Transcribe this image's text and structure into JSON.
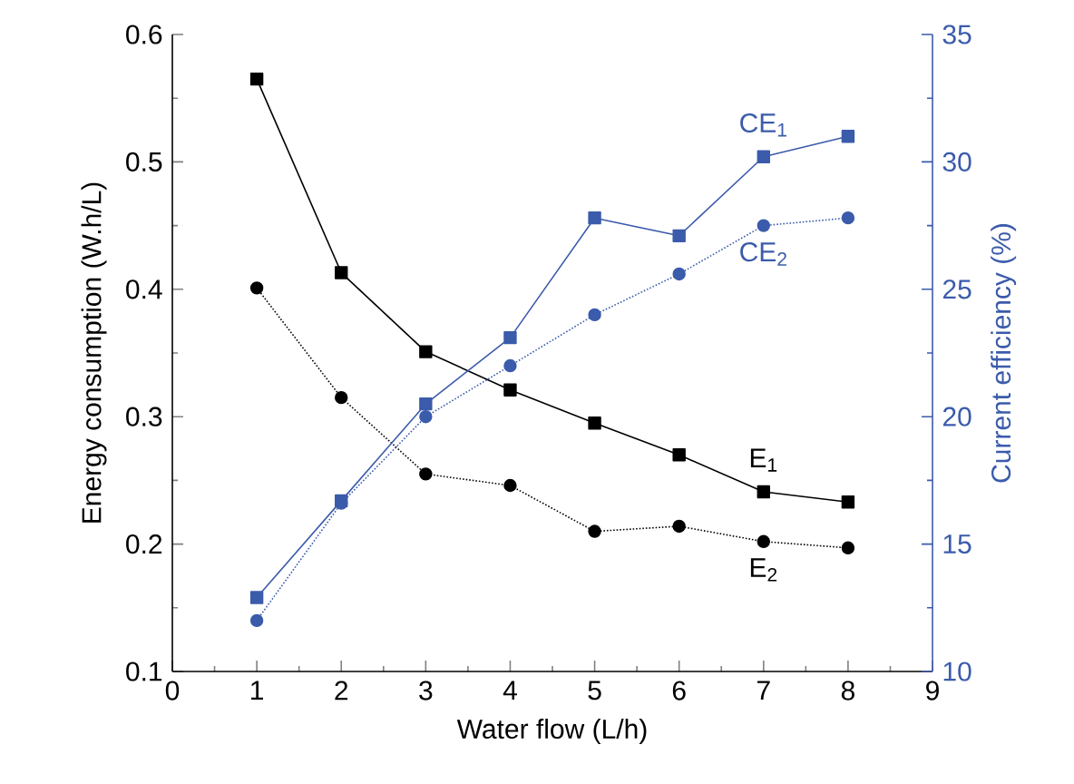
{
  "chart_data": {
    "type": "line",
    "xlabel": "Water flow (L/h)",
    "ylabel": "Energy consumption (W.h/L)",
    "y2label": "Current efficiency (%)",
    "x": [
      1,
      2,
      3,
      4,
      5,
      6,
      7,
      8
    ],
    "xlim": [
      0,
      9
    ],
    "xticks": [
      0,
      1,
      2,
      3,
      4,
      5,
      6,
      7,
      8,
      9
    ],
    "ylim": [
      0.1,
      0.6
    ],
    "yticks": [
      0.1,
      0.2,
      0.3,
      0.4,
      0.5,
      0.6
    ],
    "y2lim": [
      10,
      35
    ],
    "y2ticks": [
      10,
      15,
      20,
      25,
      30,
      35
    ],
    "grid": false,
    "legend": false,
    "series": [
      {
        "name": "E$_{1}$",
        "color": "#000000",
        "marker": "square",
        "line_style": "solid",
        "values": [
          0.565,
          0.413,
          0.351,
          0.321,
          0.295,
          0.27,
          0.241,
          0.233
        ]
      },
      {
        "name": "E$_{2}$",
        "color": "#000000",
        "marker": "circle",
        "line_style": "dotted",
        "values": [
          0.401,
          0.315,
          0.255,
          0.246,
          0.21,
          0.214,
          0.202,
          0.197
        ]
      },
      {
        "name": "CE$_{1}$",
        "color": "#3b5bab",
        "marker": "square",
        "line_style": "solid",
        "axis": "y2",
        "values": [
          12.9,
          16.7,
          20.5,
          23.1,
          27.8,
          27.1,
          30.2,
          31.0
        ]
      },
      {
        "name": "CE$_{2}$",
        "color": "#3b5bab",
        "marker": "circle",
        "line_style": "dotted",
        "axis": "y2",
        "values": [
          12.0,
          16.6,
          20.0,
          22.0,
          24.0,
          25.6,
          27.5,
          27.8
        ]
      }
    ]
  }
}
